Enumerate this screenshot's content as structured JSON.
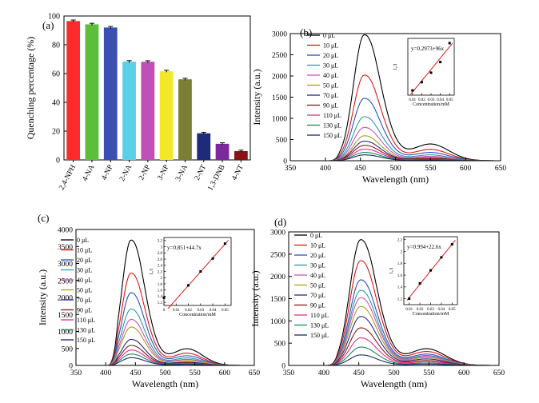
{
  "panels": [
    {
      "id": "a",
      "panel_label": "(a)",
      "chart_data": {
        "type": "bar",
        "title": "",
        "xlabel": "",
        "ylabel": "Quenching percentage (%)",
        "ylim": [
          0,
          100
        ],
        "yticks": [
          0,
          20,
          40,
          60,
          80,
          100
        ],
        "categories": [
          "2,4-NPH",
          "4-NA",
          "4-NP",
          "2-NA",
          "2-NP",
          "3-NP",
          "3-NA",
          "2-NT",
          "1,3-DNB",
          "4-NT"
        ],
        "values": [
          96.5,
          94.2,
          92.0,
          68.3,
          68.2,
          61.6,
          56.0,
          18.5,
          11.2,
          6.1
        ],
        "errors": [
          0.7,
          0.7,
          0.7,
          0.7,
          0.7,
          0.7,
          0.7,
          0.7,
          0.7,
          0.7
        ],
        "colors": [
          "#ff2a2a",
          "#5bbf3a",
          "#3a4fb0",
          "#5ad0e6",
          "#c14fb8",
          "#f2e82a",
          "#7a7f33",
          "#1f2a7a",
          "#7a2a9a",
          "#8a1212"
        ],
        "grid": false,
        "legend": "none"
      }
    },
    {
      "id": "b",
      "panel_label": "(b)",
      "chart_data": {
        "type": "line",
        "title": "",
        "xlabel": "Wavelength (nm)",
        "ylabel": "Intensity (a.u.)",
        "xlim": [
          350,
          650
        ],
        "ylim": [
          0,
          3000
        ],
        "xticks": [
          350,
          400,
          450,
          500,
          550,
          600,
          650
        ],
        "yticks": [
          0,
          500,
          1000,
          1500,
          2000,
          2500,
          3000
        ],
        "peak_x": 455,
        "series": [
          {
            "name": "0 μL",
            "peak": 3030,
            "color": "#000000"
          },
          {
            "name": "10 μL",
            "peak": 2060,
            "color": "#e01818"
          },
          {
            "name": "20 μL",
            "peak": 1500,
            "color": "#2a52c0"
          },
          {
            "name": "30 μL",
            "peak": 1060,
            "color": "#2e9aa8"
          },
          {
            "name": "40 μL",
            "peak": 800,
            "color": "#d050c0"
          },
          {
            "name": "50 μL",
            "peak": 600,
            "color": "#a8a020"
          },
          {
            "name": "70 μL",
            "peak": 470,
            "color": "#2a2a8a"
          },
          {
            "name": "90 μL",
            "peak": 370,
            "color": "#8a1a1a"
          },
          {
            "name": "110 μL",
            "peak": 280,
            "color": "#e0308a"
          },
          {
            "name": "130 μL",
            "peak": 200,
            "color": "#1a8a5a"
          },
          {
            "name": "150 μL",
            "peak": 140,
            "color": "#1a2a6a"
          }
        ],
        "legend": "top-left",
        "inset": {
          "equation": "y=0.2973+96x",
          "xlabel": "Concentration/mM",
          "ylabel": "I₀/I",
          "xlim": [
            0.005,
            0.055
          ],
          "ylim": [
            1.0,
            5.8
          ],
          "xticks": [
            0.01,
            0.02,
            0.03,
            0.04,
            0.05
          ],
          "yticks": [],
          "x": [
            0.01,
            0.02,
            0.03,
            0.04,
            0.05
          ],
          "y": [
            1.4,
            2.1,
            2.9,
            3.8,
            5.4
          ],
          "fit": {
            "intercept": 0.2973,
            "slope": 96
          }
        }
      }
    },
    {
      "id": "c",
      "panel_label": "(c)",
      "chart_data": {
        "type": "line",
        "title": "",
        "xlabel": "Wavelength (nm)",
        "ylabel": "Intensity (a.u.)",
        "xlim": [
          350,
          650
        ],
        "ylim": [
          0,
          4000
        ],
        "xticks": [
          350,
          400,
          450,
          500,
          550,
          600,
          650
        ],
        "yticks": [
          0,
          500,
          1000,
          1500,
          2000,
          2500,
          3000,
          3500,
          4000
        ],
        "peak_x": 442,
        "series": [
          {
            "name": "0 μL",
            "peak": 3760,
            "color": "#000000"
          },
          {
            "name": "10 μL",
            "peak": 2770,
            "color": "#e01818"
          },
          {
            "name": "20 μL",
            "peak": 2180,
            "color": "#2a52c0"
          },
          {
            "name": "30 μL",
            "peak": 1690,
            "color": "#2e9aa8"
          },
          {
            "name": "40 μL",
            "peak": 1380,
            "color": "#d050c0"
          },
          {
            "name": "50 μL",
            "peak": 1150,
            "color": "#a8a020"
          },
          {
            "name": "70 μL",
            "peak": 780,
            "color": "#2a2a8a"
          },
          {
            "name": "90 μL",
            "peak": 600,
            "color": "#8a1a1a"
          },
          {
            "name": "110 μL",
            "peak": 460,
            "color": "#e0308a"
          },
          {
            "name": "130 μL",
            "peak": 340,
            "color": "#1a8a5a"
          },
          {
            "name": "150 μL",
            "peak": 230,
            "color": "#1a2a6a"
          }
        ],
        "legend": "top-left",
        "inset": {
          "equation": "y=0.851+44.7x",
          "xlabel": "Concentration/mM",
          "ylabel": "I₀/I",
          "xlim": [
            0.0,
            0.055
          ],
          "ylim": [
            1.1,
            3.3
          ],
          "xticks": [
            0.0,
            0.01,
            0.02,
            0.03,
            0.04,
            0.05
          ],
          "yticks": [
            1.2,
            1.4,
            1.6,
            1.8,
            2.0,
            2.2,
            2.4,
            2.6,
            2.8,
            3.0,
            3.2
          ],
          "x": [
            0.0,
            0.02,
            0.03,
            0.04,
            0.05
          ],
          "y": [
            1.35,
            1.75,
            2.2,
            2.62,
            3.1
          ],
          "fit": {
            "intercept": 0.851,
            "slope": 44.7
          }
        }
      }
    },
    {
      "id": "d",
      "panel_label": "(d)",
      "chart_data": {
        "type": "line",
        "title": "",
        "xlabel": "Wavelength (nm)",
        "ylabel": "Intensity (a.u.)",
        "xlim": [
          350,
          650
        ],
        "ylim": [
          0,
          3000
        ],
        "xticks": [
          350,
          400,
          450,
          500,
          550,
          600,
          650
        ],
        "yticks": [
          0,
          500,
          1000,
          1500,
          2000,
          2500,
          3000
        ],
        "peak_x": 452,
        "series": [
          {
            "name": "0 μL",
            "peak": 2880,
            "color": "#000000"
          },
          {
            "name": "10 μL",
            "peak": 2400,
            "color": "#e01818"
          },
          {
            "name": "20 μL",
            "peak": 1960,
            "color": "#2a52c0"
          },
          {
            "name": "30 μL",
            "peak": 1720,
            "color": "#2e9aa8"
          },
          {
            "name": "40 μL",
            "peak": 1550,
            "color": "#d050c0"
          },
          {
            "name": "50 μL",
            "peak": 1350,
            "color": "#a8a020"
          },
          {
            "name": "70 μL",
            "peak": 1120,
            "color": "#2a2a8a"
          },
          {
            "name": "90 μL",
            "peak": 860,
            "color": "#8a1a1a"
          },
          {
            "name": "110 μL",
            "peak": 630,
            "color": "#e0308a"
          },
          {
            "name": "130 μL",
            "peak": 420,
            "color": "#1a8a5a"
          },
          {
            "name": "150 μL",
            "peak": 240,
            "color": "#1a2a6a"
          }
        ],
        "legend": "top-left",
        "inset": {
          "equation": "y=0.994+22.6x",
          "xlabel": "Concentration/mM",
          "ylabel": "I₀/I",
          "xlim": [
            0.005,
            0.055
          ],
          "ylim": [
            1.1,
            2.25
          ],
          "xticks": [
            0.01,
            0.02,
            0.03,
            0.04,
            0.05
          ],
          "yticks": [
            1.2,
            1.4,
            1.6,
            1.8,
            2.0,
            2.2
          ],
          "x": [
            0.01,
            0.02,
            0.03,
            0.04,
            0.05
          ],
          "y": [
            1.2,
            1.46,
            1.68,
            1.9,
            2.12
          ],
          "fit": {
            "intercept": 0.994,
            "slope": 22.6
          }
        }
      }
    }
  ]
}
